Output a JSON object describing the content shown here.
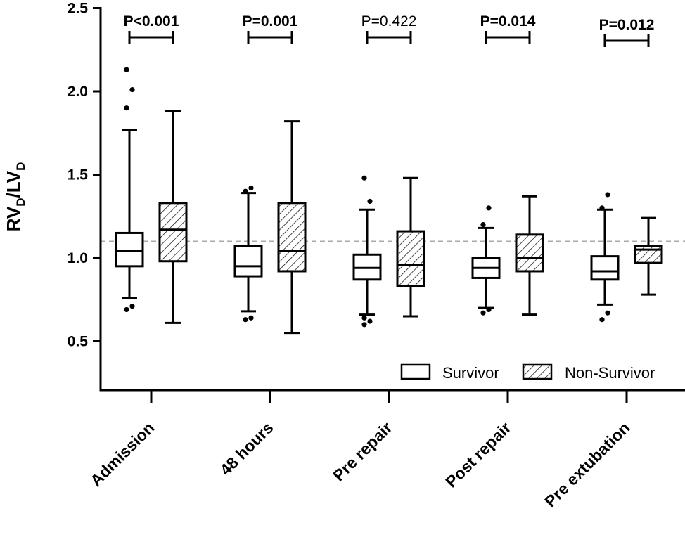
{
  "chart_data": {
    "type": "boxplot",
    "ylabel": {
      "main1": "RV",
      "sub1": "D",
      "slash": "/",
      "main2": "LV",
      "sub2": "D"
    },
    "ylim": [
      0.3,
      2.5
    ],
    "yticks": [
      "0.5",
      "1.0",
      "1.5",
      "2.0",
      "2.5"
    ],
    "reference_line": 1.1,
    "categories": [
      "Admission",
      "48 hours",
      "Pre repair",
      "Post repair",
      "Pre extubation"
    ],
    "p_values": [
      {
        "label": "P<0.001",
        "bold": true
      },
      {
        "label": "P=0.001",
        "bold": true
      },
      {
        "label": "P=0.422",
        "bold": false
      },
      {
        "label": "P=0.014",
        "bold": true
      },
      {
        "label": "P=0.012",
        "bold": true
      }
    ],
    "series": [
      {
        "name": "Survivor",
        "pattern": "none",
        "boxes": [
          {
            "min": 0.76,
            "q1": 0.95,
            "median": 1.04,
            "q3": 1.15,
            "max": 1.77,
            "outliers": [
              0.69,
              0.71,
              1.9,
              2.01,
              2.13
            ]
          },
          {
            "min": 0.68,
            "q1": 0.89,
            "median": 0.95,
            "q3": 1.07,
            "max": 1.39,
            "outliers": [
              0.63,
              0.64,
              1.4,
              1.42
            ]
          },
          {
            "min": 0.66,
            "q1": 0.87,
            "median": 0.94,
            "q3": 1.02,
            "max": 1.29,
            "outliers": [
              0.6,
              0.62,
              0.64,
              1.34,
              1.48
            ]
          },
          {
            "min": 0.7,
            "q1": 0.88,
            "median": 0.94,
            "q3": 1.0,
            "max": 1.18,
            "outliers": [
              0.67,
              0.69,
              1.2,
              1.3
            ]
          },
          {
            "min": 0.72,
            "q1": 0.87,
            "median": 0.92,
            "q3": 1.01,
            "max": 1.29,
            "outliers": [
              0.63,
              0.67,
              1.3,
              1.38
            ]
          }
        ]
      },
      {
        "name": "Non-Survivor",
        "pattern": "hatched",
        "boxes": [
          {
            "min": 0.61,
            "q1": 0.98,
            "median": 1.17,
            "q3": 1.33,
            "max": 1.88,
            "outliers": []
          },
          {
            "min": 0.55,
            "q1": 0.92,
            "median": 1.04,
            "q3": 1.33,
            "max": 1.82,
            "outliers": []
          },
          {
            "min": 0.65,
            "q1": 0.83,
            "median": 0.96,
            "q3": 1.16,
            "max": 1.48,
            "outliers": []
          },
          {
            "min": 0.66,
            "q1": 0.92,
            "median": 1.0,
            "q3": 1.14,
            "max": 1.37,
            "outliers": []
          },
          {
            "min": 0.78,
            "q1": 0.97,
            "median": 1.05,
            "q3": 1.07,
            "max": 1.24,
            "outliers": []
          }
        ]
      }
    ],
    "legend": {
      "position": "bottom-right",
      "items": [
        "Survivor",
        "Non-Survivor"
      ]
    }
  }
}
